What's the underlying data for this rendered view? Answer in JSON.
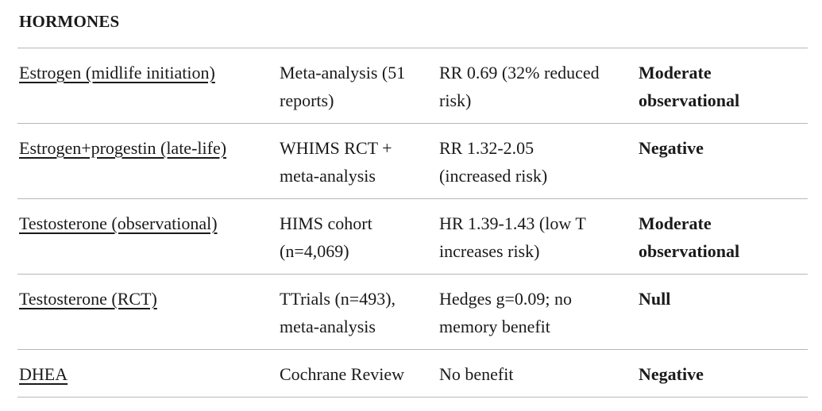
{
  "colors": {
    "text": "#1a1a1a",
    "divider": "#b7b7b7",
    "background": "#ffffff",
    "link": "#1a1a1a"
  },
  "table": {
    "section_header": "HORMONES",
    "rows": [
      {
        "treatment": "Estrogen (midlife initiation)",
        "study": "Meta-analysis (51\nreports)",
        "result": "RR 0.69 (32% reduced\nrisk)",
        "evidence": "Moderate\nobservational"
      },
      {
        "treatment": "Estrogen+progestin (late-life)",
        "study": "WHIMS RCT +\nmeta-analysis",
        "result": "RR 1.32-2.05\n(increased risk)",
        "evidence": "Negative"
      },
      {
        "treatment": "Testosterone (observational)",
        "study": "HIMS cohort\n(n=4,069)",
        "result": "HR 1.39-1.43 (low T\nincreases risk)",
        "evidence": "Moderate\nobservational"
      },
      {
        "treatment": "Testosterone (RCT)",
        "study": "TTrials (n=493),\nmeta-analysis",
        "result": "Hedges g=0.09; no\nmemory benefit",
        "evidence": "Null"
      },
      {
        "treatment": "DHEA",
        "study": "Cochrane Review",
        "result": "No benefit",
        "evidence": "Negative"
      }
    ]
  }
}
